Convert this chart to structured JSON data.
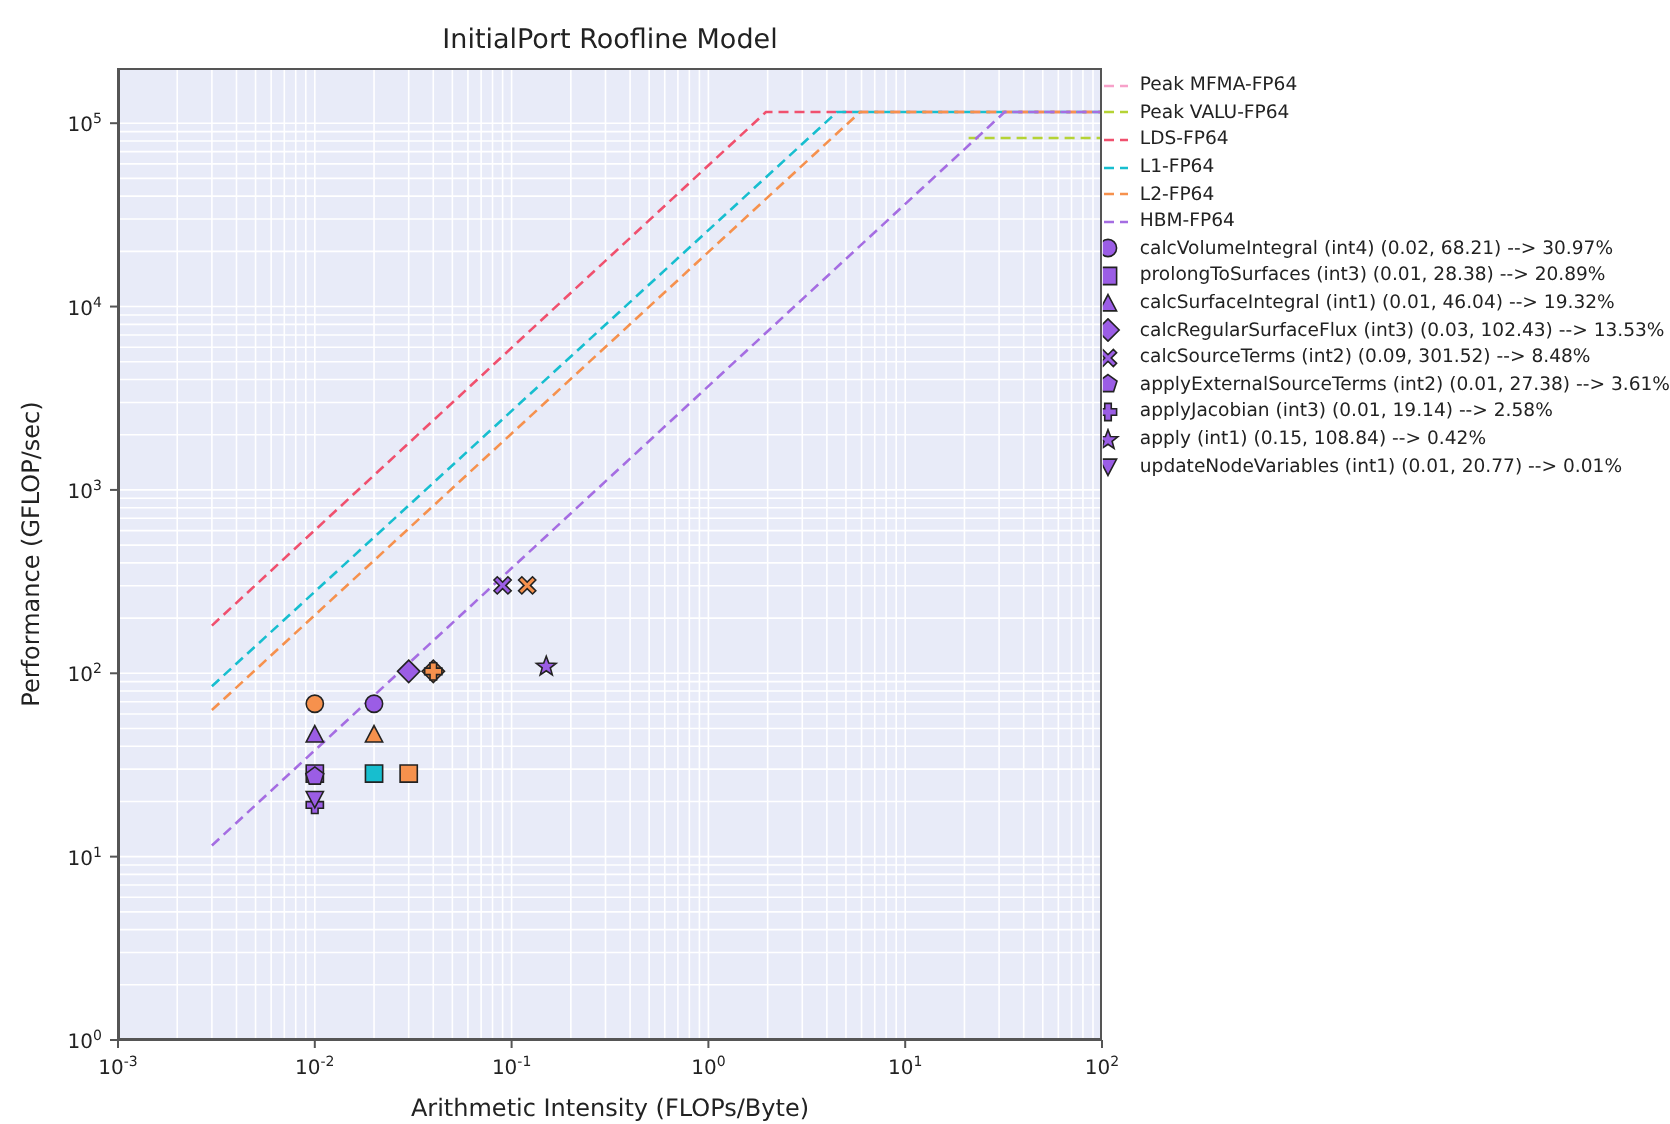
{
  "chart_data": {
    "type": "scatter",
    "title": "InitialPort Roofline Model",
    "xlabel": "Arithmetic Intensity (FLOPs/Byte)",
    "ylabel": "Performance (GFLOP/sec)",
    "log": "xy",
    "grid": true,
    "legend": "right",
    "xlim": [
      0.001,
      100
    ],
    "ylim": [
      1,
      200000
    ],
    "xticks": [
      {
        "value": 0.001,
        "label": "10$^{-3}$"
      },
      {
        "value": 0.01,
        "label": "10$^{-2}$"
      },
      {
        "value": 0.1,
        "label": "10$^{-1}$"
      },
      {
        "value": 1,
        "label": "10$^{0}$"
      },
      {
        "value": 10,
        "label": "10$^{1}$"
      },
      {
        "value": 100,
        "label": "10$^{2}$"
      }
    ],
    "yticks": [
      {
        "value": 1,
        "label": "10$^{0}$"
      },
      {
        "value": 10,
        "label": "10$^{1}$"
      },
      {
        "value": 100,
        "label": "10$^{2}$"
      },
      {
        "value": 1000,
        "label": "10$^{3}$"
      },
      {
        "value": 10000,
        "label": "10$^{4}$"
      },
      {
        "value": 100000,
        "label": "10$^{5}$"
      }
    ],
    "series": [
      {
        "type": "line",
        "name": "Peak MFMA-FP64",
        "color": "#f7a1c9",
        "line_style": "dashed",
        "marker": "none"
      },
      {
        "type": "line",
        "name": "Peak VALU-FP64",
        "color": "#b5d335",
        "line_style": "dashed",
        "marker": "none",
        "x": [
          21,
          100
        ],
        "values": [
          83000,
          83000
        ]
      },
      {
        "type": "line",
        "name": "LDS-FP64",
        "color": "#f0506e",
        "line_style": "dashed",
        "marker": "none",
        "x": [
          0.003,
          1.96,
          100
        ],
        "values": [
          182,
          115000,
          115000
        ]
      },
      {
        "type": "line",
        "name": "L1-FP64",
        "color": "#17becf",
        "line_style": "dashed",
        "marker": "none",
        "x": [
          0.003,
          4.5,
          100
        ],
        "values": [
          85,
          115000,
          115000
        ]
      },
      {
        "type": "line",
        "name": "L2-FP64",
        "color": "#f6914d",
        "line_style": "dashed",
        "marker": "none",
        "x": [
          0.003,
          5.9,
          100
        ],
        "values": [
          63,
          115000,
          115000
        ]
      },
      {
        "type": "line",
        "name": "HBM-FP64",
        "color": "#a56de2",
        "line_style": "dashed",
        "marker": "none",
        "x": [
          0.003,
          32,
          100
        ],
        "values": [
          11.5,
          115000,
          115000
        ]
      },
      {
        "name": "calcVolumeIntegral (int4) (0.02, 68.21) --> 30.97%",
        "color": "#9b5de5",
        "marker": "circle",
        "x": [
          0.01,
          0.02
        ],
        "values": [
          68.21,
          68.21
        ],
        "colors": [
          "#f6914d",
          "#9b5de5"
        ]
      },
      {
        "name": "prolongToSurfaces (int3) (0.01, 28.38) --> 20.89%",
        "color": "#9b5de5",
        "marker": "square",
        "x": [
          0.01,
          0.02,
          0.03
        ],
        "values": [
          28.38,
          28.38,
          28.38
        ],
        "colors": [
          "#9b5de5",
          "#17becf",
          "#f6914d"
        ]
      },
      {
        "name": "calcSurfaceIntegral (int1) (0.01, 46.04) --> 19.32%",
        "color": "#9b5de5",
        "marker": "triangle",
        "x": [
          0.01,
          0.02
        ],
        "values": [
          46.04,
          46.04
        ],
        "colors": [
          "#9b5de5",
          "#f6914d"
        ]
      },
      {
        "name": "calcRegularSurfaceFlux (int3) (0.03, 102.43) --> 13.53%",
        "color": "#9b5de5",
        "marker": "diamond",
        "x": [
          0.03,
          0.04
        ],
        "values": [
          102.43,
          102.43
        ],
        "colors": [
          "#9b5de5",
          "#f6914d"
        ]
      },
      {
        "name": "calcSourceTerms (int2) (0.09, 301.52) --> 8.48%",
        "color": "#9b5de5",
        "marker": "cross",
        "x": [
          0.09,
          0.12
        ],
        "values": [
          301.52,
          301.52
        ],
        "colors": [
          "#9b5de5",
          "#f6914d"
        ]
      },
      {
        "name": "applyExternalSourceTerms (int2) (0.01, 27.38) --> 3.61%",
        "color": "#9b5de5",
        "x": [
          0.01
        ],
        "values": [
          27.38
        ],
        "colors": [
          "#9b5de5"
        ]
      },
      {
        "name": "applyJacobian (int3) (0.01, 19.14) --> 2.58%",
        "color": "#9b5de5",
        "marker": "plus",
        "x": [
          0.01,
          0.04
        ],
        "values": [
          19.14,
          102.43
        ],
        "colors": [
          "#9b5de5",
          "#f6914d"
        ]
      },
      {
        "name": "apply (int1) (0.15, 108.84) --> 0.42%",
        "color": "#9b5de5",
        "marker": "star",
        "x": [
          0.15
        ],
        "values": [
          108.84
        ],
        "colors": [
          "#9b5de5"
        ]
      },
      {
        "name": "updateNodeVariables (int1) (0.01, 20.77) --> 0.01%",
        "color": "#9b5de5",
        "marker": "triangle-down",
        "x": [
          0.01
        ],
        "values": [
          20.77
        ],
        "colors": [
          "#9b5de5"
        ]
      }
    ]
  }
}
